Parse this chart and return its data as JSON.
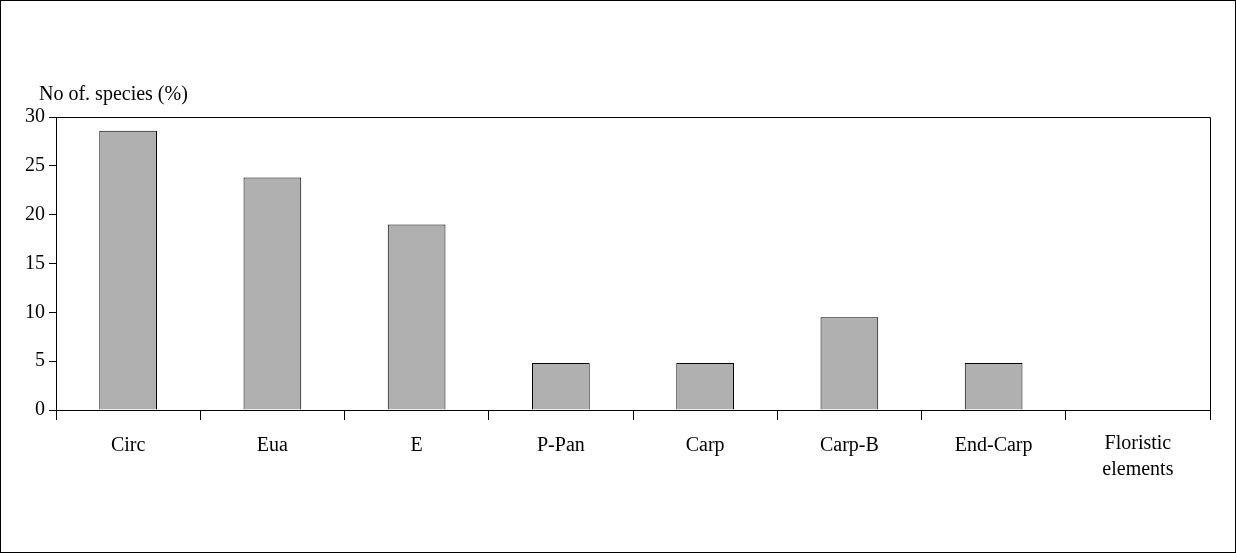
{
  "chart_data": {
    "type": "bar",
    "ylabel": "No of. species (%)",
    "xlabel": "Floristic elements",
    "categories": [
      "Circ",
      "Eua",
      "E",
      "P-Pan",
      "Carp",
      "Carp-B",
      "End-Carp"
    ],
    "values": [
      28.6,
      23.8,
      19,
      4.8,
      4.8,
      9.5,
      4.8
    ],
    "color": "#b0b0b0",
    "ylim": [
      0,
      30
    ],
    "yticks": [
      0,
      5,
      10,
      15,
      20,
      25,
      30
    ],
    "grid": false,
    "legend": false
  }
}
